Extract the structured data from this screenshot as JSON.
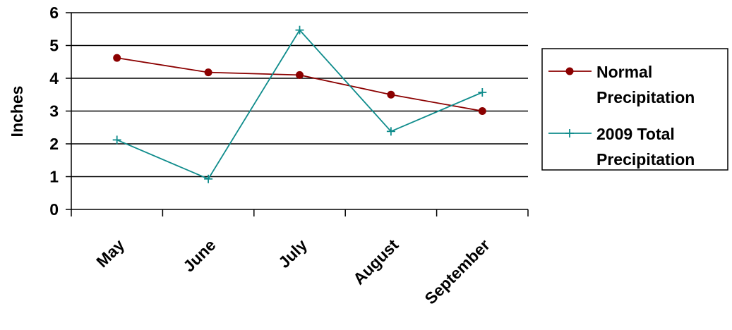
{
  "chart_data": {
    "type": "line",
    "title": "",
    "xlabel": "",
    "ylabel": "Inches",
    "categories": [
      "May",
      "June",
      "July",
      "August",
      "September"
    ],
    "ylim": [
      0,
      6
    ],
    "yticks": [
      0,
      1,
      2,
      3,
      4,
      5,
      6
    ],
    "grid": true,
    "legend_position": "right",
    "series": [
      {
        "name": "Normal Precipitation",
        "name_lines": [
          "Normal",
          "Precipitation"
        ],
        "values": [
          4.62,
          4.18,
          4.1,
          3.5,
          3.0
        ],
        "color": "#8B0000",
        "marker": "circle"
      },
      {
        "name": "2009 Total Precipitation",
        "name_lines": [
          "2009 Total",
          "Precipitation"
        ],
        "values": [
          2.12,
          0.93,
          5.47,
          2.38,
          3.57
        ],
        "color": "#0F8C8C",
        "marker": "plus"
      }
    ]
  }
}
